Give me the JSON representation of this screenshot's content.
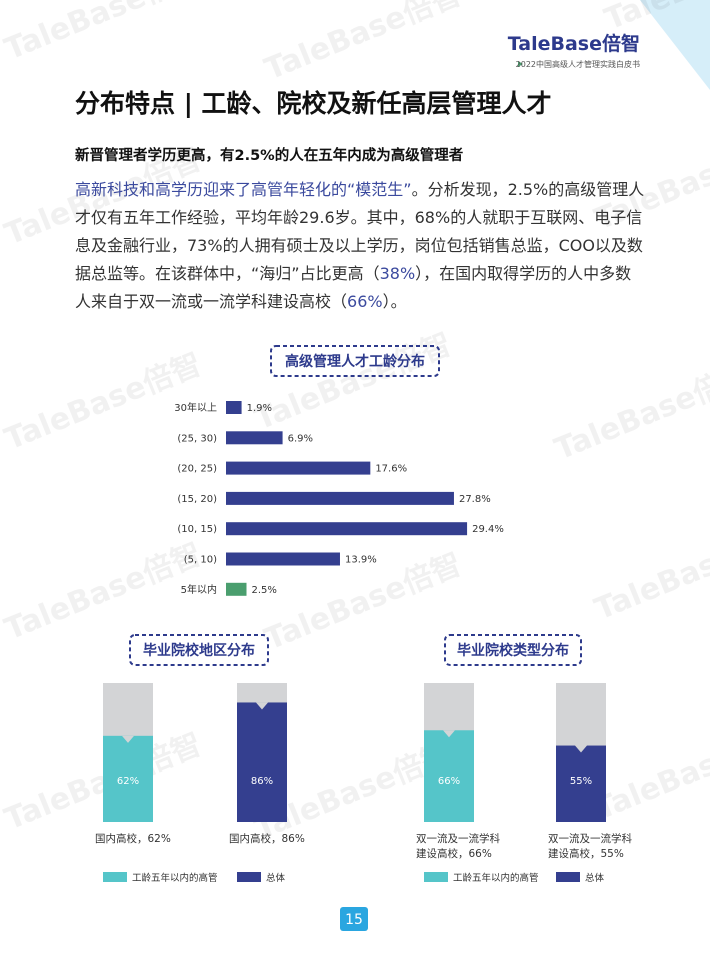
{
  "header": {
    "logo": "TaleBase倍智",
    "subtitle": "2022中国高级人才管理实践白皮书"
  },
  "title": "分布特点 | 工龄、院校及新任高层管理人才",
  "subtitle": "新晋管理者学历更高，有2.5%的人在五年内成为高级管理者",
  "highlight_color": "#3b4a9e",
  "paragraph": [
    {
      "text": "高新科技和高学历迎来了高管年轻化的“模范生”",
      "highlight": true
    },
    {
      "text": "。分析发现，2.5%的高级管理人才仅有五年工作经验，平均年龄29.6岁。其中，68%的人就职于互联网、电子信息及金融行业，73%的人拥有硕士及以上学历，岗位包括销售总监，COO以及数据总监等。在该群体中，“海归”占比更高（",
      "highlight": false
    },
    {
      "text": "38%",
      "highlight": true
    },
    {
      "text": "），在国内取得学历的人中多数人来自于双一流或一流学科建设高校（",
      "highlight": false
    },
    {
      "text": "66%",
      "highlight": true
    },
    {
      "text": "）。",
      "highlight": false
    }
  ],
  "charts": [
    {
      "type": "hbar",
      "title": "高级管理人才工龄分布",
      "categories": [
        "30年以上",
        "(25, 30)",
        "(20, 25)",
        "(15, 20)",
        "(10, 15)",
        "(5, 10)",
        "5年以内"
      ],
      "values": [
        1.9,
        6.9,
        17.6,
        27.8,
        29.4,
        13.9,
        2.5
      ],
      "value_labels": [
        "1.9%",
        "6.9%",
        "17.6%",
        "27.8%",
        "29.4%",
        "13.9%",
        "2.5%"
      ],
      "colors": [
        "#343f8f",
        "#343f8f",
        "#343f8f",
        "#343f8f",
        "#343f8f",
        "#343f8f",
        "#4a9e6e"
      ],
      "xlim": [
        0,
        30
      ]
    },
    {
      "type": "progress",
      "title": "毕业院校地区分布",
      "categories": [
        "国内高校，62%",
        "国内高校，86%"
      ],
      "values": [
        62,
        86
      ],
      "value_labels": [
        "62%",
        "86%"
      ],
      "ylim": [
        0,
        100
      ],
      "track_color": "#d3d4d6",
      "series": [
        {
          "name": "工龄五年以内的高管",
          "color": "#55c5c9"
        },
        {
          "name": "总体",
          "color": "#343f8f"
        }
      ]
    },
    {
      "type": "progress",
      "title": "毕业院校类型分布",
      "categories": [
        "双一流及一流学科建设高校，66%",
        "双一流及一流学科建设高校，55%"
      ],
      "values": [
        66,
        55
      ],
      "value_labels": [
        "66%",
        "55%"
      ],
      "ylim": [
        0,
        100
      ],
      "track_color": "#d3d4d6",
      "series": [
        {
          "name": "工龄五年以内的高管",
          "color": "#55c5c9"
        },
        {
          "name": "总体",
          "color": "#343f8f"
        }
      ]
    }
  ],
  "page_number": "15",
  "watermark": "TaleBase倍智"
}
